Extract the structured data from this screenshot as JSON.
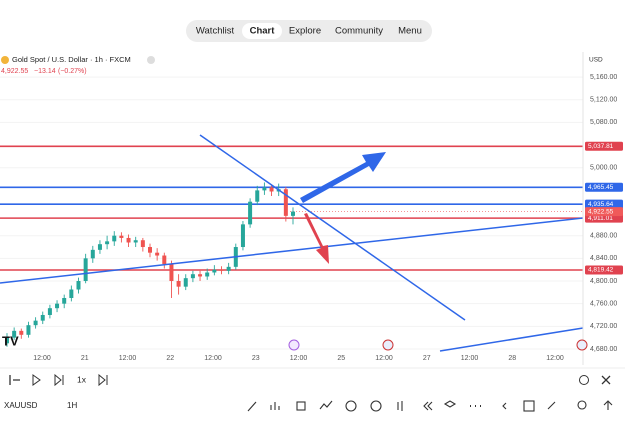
{
  "nav": {
    "items": [
      "Watchlist",
      "Chart",
      "Explore",
      "Community",
      "Menu"
    ],
    "active": 1
  },
  "chart_data": {
    "type": "candlestick",
    "title": "Gold Spot / U.S. Dollar · 1h · FXCM",
    "quote": {
      "price": "4,922.55",
      "change": "−13.14",
      "percent": "(−0.27%)"
    },
    "currency": "USD",
    "up_color": "#26a69a",
    "down_color": "#ef5350",
    "ylim": [
      4657,
      5199
    ],
    "yticks": [
      {
        "value": 5160,
        "label": "5,160.00"
      },
      {
        "value": 5120,
        "label": "5,120.00"
      },
      {
        "value": 5080,
        "label": "5,080.00"
      },
      {
        "value": 5000,
        "label": "5,000.00"
      },
      {
        "value": 4880,
        "label": "4,880.00"
      },
      {
        "value": 4840,
        "label": "4,840.00"
      },
      {
        "value": 4800,
        "label": "4,800.00"
      },
      {
        "value": 4760,
        "label": "4,760.00"
      },
      {
        "value": 4720,
        "label": "4,720.00"
      },
      {
        "value": 4680,
        "label": "4,680.00"
      }
    ],
    "xlabels": [
      "12:00",
      "21",
      "12:00",
      "22",
      "12:00",
      "23",
      "12:00",
      "25",
      "12:00",
      "27",
      "12:00",
      "28",
      "12:00"
    ],
    "open": [
      4690,
      4700,
      4712,
      4705,
      4722,
      4730,
      4740,
      4752,
      4760,
      4770,
      4785,
      4800,
      4840,
      4855,
      4865,
      4870,
      4880,
      4876,
      4868,
      4872,
      4860,
      4850,
      4845,
      4830,
      4800,
      4790,
      4805,
      4812,
      4808,
      4815,
      4820,
      4818,
      4825,
      4860,
      4900,
      4940,
      4960,
      4965,
      4958,
      4962,
      4915
    ],
    "high": [
      4708,
      4718,
      4716,
      4728,
      4736,
      4746,
      4758,
      4766,
      4776,
      4792,
      4806,
      4848,
      4862,
      4872,
      4880,
      4888,
      4886,
      4882,
      4878,
      4876,
      4866,
      4858,
      4850,
      4836,
      4812,
      4812,
      4818,
      4818,
      4822,
      4828,
      4826,
      4832,
      4866,
      4906,
      4946,
      4968,
      4974,
      4970,
      4972,
      4966,
      4930
    ],
    "low": [
      4684,
      4696,
      4698,
      4700,
      4716,
      4724,
      4734,
      4745,
      4752,
      4764,
      4778,
      4796,
      4832,
      4848,
      4856,
      4862,
      4868,
      4860,
      4860,
      4852,
      4842,
      4836,
      4822,
      4770,
      4776,
      4784,
      4798,
      4800,
      4802,
      4810,
      4812,
      4812,
      4820,
      4854,
      4894,
      4934,
      4952,
      4950,
      4950,
      4905,
      4900
    ],
    "close": [
      4700,
      4712,
      4705,
      4722,
      4730,
      4740,
      4752,
      4760,
      4770,
      4785,
      4800,
      4840,
      4855,
      4865,
      4870,
      4880,
      4876,
      4868,
      4872,
      4860,
      4850,
      4845,
      4830,
      4800,
      4790,
      4805,
      4812,
      4808,
      4815,
      4820,
      4818,
      4825,
      4860,
      4900,
      4940,
      4960,
      4965,
      4958,
      4962,
      4915,
      4922.55
    ],
    "levels": [
      {
        "value": 5037.81,
        "label": "5,037.81",
        "color": "#e0424f"
      },
      {
        "value": 4965.45,
        "label": "4,965.45",
        "color": "#2f67e8"
      },
      {
        "value": 4935.64,
        "label": "4,935.64",
        "color": "#2f67e8"
      },
      {
        "value": 4911.01,
        "label": "4,911.01",
        "color": "#e0424f"
      },
      {
        "value": 4819.42,
        "label": "4,819.42",
        "color": "#e0424f"
      }
    ],
    "last_price": {
      "value": 4922.55,
      "label": "4,922.55",
      "color": "#f05a5a"
    }
  },
  "toolbar": {
    "speed": "1x",
    "symbol": "XAUUSD",
    "interval": "1H"
  }
}
